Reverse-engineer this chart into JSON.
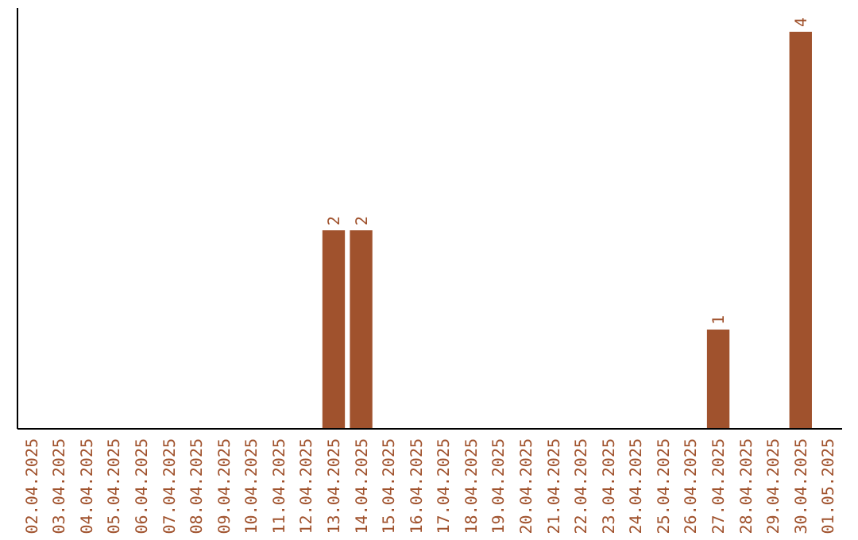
{
  "chart_data": {
    "type": "bar",
    "categories": [
      "02.04.2025",
      "03.04.2025",
      "04.04.2025",
      "05.04.2025",
      "06.04.2025",
      "07.04.2025",
      "08.04.2025",
      "09.04.2025",
      "10.04.2025",
      "11.04.2025",
      "12.04.2025",
      "13.04.2025",
      "14.04.2025",
      "15.04.2025",
      "16.04.2025",
      "17.04.2025",
      "18.04.2025",
      "19.04.2025",
      "20.04.2025",
      "21.04.2025",
      "22.04.2025",
      "23.04.2025",
      "24.04.2025",
      "25.04.2025",
      "26.04.2025",
      "27.04.2025",
      "28.04.2025",
      "29.04.2025",
      "30.04.2025",
      "01.05.2025"
    ],
    "values": [
      0,
      0,
      0,
      0,
      0,
      0,
      0,
      0,
      0,
      0,
      0,
      2,
      2,
      0,
      0,
      0,
      0,
      0,
      0,
      0,
      0,
      0,
      0,
      0,
      0,
      1,
      0,
      0,
      4,
      0
    ],
    "value_labels": [
      null,
      null,
      null,
      null,
      null,
      null,
      null,
      null,
      null,
      null,
      null,
      "2",
      "2",
      null,
      null,
      null,
      null,
      null,
      null,
      null,
      null,
      null,
      null,
      null,
      null,
      "1",
      null,
      null,
      "4",
      null
    ],
    "color": "#a0522d",
    "tick_labels": "x"
  }
}
